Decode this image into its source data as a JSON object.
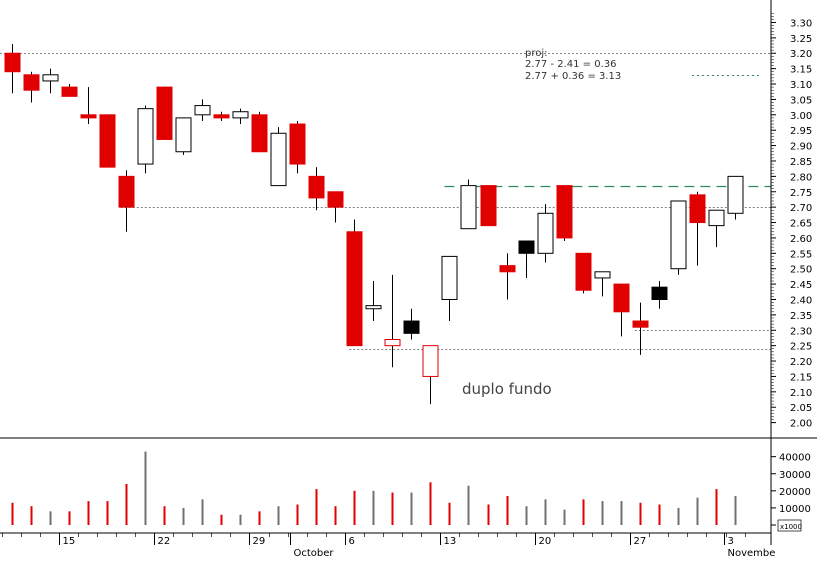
{
  "colors": {
    "background": "#ffffff",
    "up_body": "#ffffff",
    "down_body": "#e00000",
    "neutral_body": "#000000",
    "grid": "#808080",
    "target_line": "#2e8b57",
    "text": "#333333",
    "volume_red": "#e00000",
    "volume_gray": "#707070"
  },
  "chart_data": {
    "type": "candlestick",
    "price_axis": {
      "range": [
        1.95,
        3.36
      ],
      "ticks": [
        "3.30",
        "3.25",
        "3.20",
        "3.15",
        "3.10",
        "3.05",
        "3.00",
        "2.95",
        "2.90",
        "2.85",
        "2.80",
        "2.75",
        "2.70",
        "2.65",
        "2.60",
        "2.55",
        "2.50",
        "2.45",
        "2.40",
        "2.35",
        "2.30",
        "2.25",
        "2.20",
        "2.15",
        "2.10",
        "2.05",
        "2.00"
      ]
    },
    "volume_axis": {
      "range": [
        0,
        48000
      ],
      "ticks": [
        "40000",
        "30000",
        "20000",
        "10000",
        "0"
      ],
      "unit_label": "x1000"
    },
    "x_axis": {
      "ticks": [
        {
          "label": "15",
          "day": 3
        },
        {
          "label": "22",
          "day": 8
        },
        {
          "label": "29",
          "day": 13
        },
        {
          "label": "October",
          "day": 15
        },
        {
          "label": "6",
          "day": 18
        },
        {
          "label": "13",
          "day": 23
        },
        {
          "label": "20",
          "day": 28
        },
        {
          "label": "27",
          "day": 33
        },
        {
          "label": "3",
          "day": 38
        },
        {
          "label": "Novembe",
          "day": 38
        }
      ]
    },
    "candles": [
      {
        "open": 3.2,
        "high": 3.23,
        "low": 3.07,
        "close": 3.14,
        "color": "down"
      },
      {
        "open": 3.13,
        "high": 3.14,
        "low": 3.04,
        "close": 3.08,
        "color": "down"
      },
      {
        "open": 3.11,
        "high": 3.15,
        "low": 3.07,
        "close": 3.13,
        "color": "up"
      },
      {
        "open": 3.09,
        "high": 3.1,
        "low": 3.06,
        "close": 3.06,
        "color": "down"
      },
      {
        "open": 3.0,
        "high": 3.09,
        "low": 2.97,
        "close": 2.99,
        "color": "down"
      },
      {
        "open": 3.0,
        "high": 3.0,
        "low": 2.83,
        "close": 2.83,
        "color": "down"
      },
      {
        "open": 2.8,
        "high": 2.82,
        "low": 2.62,
        "close": 2.7,
        "color": "down"
      },
      {
        "open": 2.84,
        "high": 3.03,
        "low": 2.81,
        "close": 3.02,
        "color": "up"
      },
      {
        "open": 3.09,
        "high": 3.09,
        "low": 2.92,
        "close": 2.92,
        "color": "down"
      },
      {
        "open": 2.88,
        "high": 2.99,
        "low": 2.87,
        "close": 2.99,
        "color": "up"
      },
      {
        "open": 3.0,
        "high": 3.05,
        "low": 2.98,
        "close": 3.03,
        "color": "up"
      },
      {
        "open": 3.0,
        "high": 3.01,
        "low": 2.98,
        "close": 2.99,
        "color": "down"
      },
      {
        "open": 2.99,
        "high": 3.02,
        "low": 2.97,
        "close": 3.01,
        "color": "up"
      },
      {
        "open": 3.0,
        "high": 3.01,
        "low": 2.88,
        "close": 2.88,
        "color": "down"
      },
      {
        "open": 2.77,
        "high": 2.96,
        "low": 2.77,
        "close": 2.94,
        "color": "up"
      },
      {
        "open": 2.97,
        "high": 2.98,
        "low": 2.81,
        "close": 2.84,
        "color": "down"
      },
      {
        "open": 2.8,
        "high": 2.83,
        "low": 2.69,
        "close": 2.73,
        "color": "down"
      },
      {
        "open": 2.75,
        "high": 2.75,
        "low": 2.65,
        "close": 2.7,
        "color": "down"
      },
      {
        "open": 2.62,
        "high": 2.66,
        "low": 2.25,
        "close": 2.25,
        "color": "down"
      },
      {
        "open": 2.37,
        "high": 2.46,
        "low": 2.33,
        "close": 2.38,
        "color": "up"
      },
      {
        "open": 2.27,
        "high": 2.48,
        "low": 2.18,
        "close": 2.25,
        "color": "down_hollow"
      },
      {
        "open": 2.29,
        "high": 2.37,
        "low": 2.27,
        "close": 2.33,
        "color": "neutral"
      },
      {
        "open": 2.25,
        "high": 2.25,
        "low": 2.06,
        "close": 2.15,
        "color": "down_hollow"
      },
      {
        "open": 2.4,
        "high": 2.54,
        "low": 2.33,
        "close": 2.54,
        "color": "up"
      },
      {
        "open": 2.63,
        "high": 2.79,
        "low": 2.63,
        "close": 2.77,
        "color": "up"
      },
      {
        "open": 2.77,
        "high": 2.77,
        "low": 2.64,
        "close": 2.64,
        "color": "down"
      },
      {
        "open": 2.51,
        "high": 2.55,
        "low": 2.4,
        "close": 2.49,
        "color": "down"
      },
      {
        "open": 2.55,
        "high": 2.59,
        "low": 2.47,
        "close": 2.59,
        "color": "neutral"
      },
      {
        "open": 2.55,
        "high": 2.71,
        "low": 2.52,
        "close": 2.68,
        "color": "up"
      },
      {
        "open": 2.77,
        "high": 2.77,
        "low": 2.59,
        "close": 2.6,
        "color": "down"
      },
      {
        "open": 2.55,
        "high": 2.55,
        "low": 2.42,
        "close": 2.43,
        "color": "down"
      },
      {
        "open": 2.47,
        "high": 2.49,
        "low": 2.41,
        "close": 2.49,
        "color": "up"
      },
      {
        "open": 2.45,
        "high": 2.45,
        "low": 2.28,
        "close": 2.36,
        "color": "down"
      },
      {
        "open": 2.33,
        "high": 2.39,
        "low": 2.22,
        "close": 2.31,
        "color": "down"
      },
      {
        "open": 2.4,
        "high": 2.46,
        "low": 2.37,
        "close": 2.44,
        "color": "neutral"
      },
      {
        "open": 2.5,
        "high": 2.72,
        "low": 2.48,
        "close": 2.72,
        "color": "up"
      },
      {
        "open": 2.74,
        "high": 2.75,
        "low": 2.51,
        "close": 2.65,
        "color": "down"
      },
      {
        "open": 2.64,
        "high": 2.69,
        "low": 2.57,
        "close": 2.69,
        "color": "up"
      },
      {
        "open": 2.68,
        "high": 2.8,
        "low": 2.66,
        "close": 2.8,
        "color": "up"
      }
    ],
    "volume": [
      {
        "value": 13000,
        "color": "red"
      },
      {
        "value": 11000,
        "color": "red"
      },
      {
        "value": 8000,
        "color": "gray"
      },
      {
        "value": 8000,
        "color": "red"
      },
      {
        "value": 14000,
        "color": "red"
      },
      {
        "value": 14000,
        "color": "red"
      },
      {
        "value": 24000,
        "color": "red"
      },
      {
        "value": 43000,
        "color": "gray"
      },
      {
        "value": 11000,
        "color": "red"
      },
      {
        "value": 10000,
        "color": "gray"
      },
      {
        "value": 15000,
        "color": "gray"
      },
      {
        "value": 6000,
        "color": "red"
      },
      {
        "value": 6000,
        "color": "gray"
      },
      {
        "value": 8000,
        "color": "red"
      },
      {
        "value": 11000,
        "color": "gray"
      },
      {
        "value": 12000,
        "color": "red"
      },
      {
        "value": 21000,
        "color": "red"
      },
      {
        "value": 11000,
        "color": "red"
      },
      {
        "value": 20000,
        "color": "red"
      },
      {
        "value": 20000,
        "color": "gray"
      },
      {
        "value": 19000,
        "color": "red"
      },
      {
        "value": 19000,
        "color": "gray"
      },
      {
        "value": 25000,
        "color": "red"
      },
      {
        "value": 13000,
        "color": "red"
      },
      {
        "value": 23000,
        "color": "gray"
      },
      {
        "value": 12000,
        "color": "red"
      },
      {
        "value": 17000,
        "color": "red"
      },
      {
        "value": 11000,
        "color": "gray"
      },
      {
        "value": 15000,
        "color": "gray"
      },
      {
        "value": 9000,
        "color": "gray"
      },
      {
        "value": 15000,
        "color": "red"
      },
      {
        "value": 14000,
        "color": "gray"
      },
      {
        "value": 14000,
        "color": "gray"
      },
      {
        "value": 13000,
        "color": "red"
      },
      {
        "value": 12000,
        "color": "red"
      },
      {
        "value": 10000,
        "color": "gray"
      },
      {
        "value": 16000,
        "color": "gray"
      },
      {
        "value": 21000,
        "color": "red"
      },
      {
        "value": 17000,
        "color": "gray"
      }
    ],
    "reference_lines": [
      {
        "name": "dotted-3.20",
        "value": 3.2,
        "style": "dotted",
        "from_day": 0
      },
      {
        "name": "dotted-2.70",
        "value": 2.7,
        "style": "dotted",
        "from_day": 6
      },
      {
        "name": "dashed-2.77-target",
        "value": 2.77,
        "style": "dashed",
        "from_day": 23
      },
      {
        "name": "dotted-2.30",
        "value": 2.3,
        "style": "dotted",
        "from_day": 33
      },
      {
        "name": "dotted-2.24",
        "value": 2.24,
        "style": "dotted",
        "from_day": 18
      },
      {
        "name": "projection-3.13",
        "value": 3.13,
        "style": "dotted-green",
        "from_day": 36
      }
    ],
    "annotations": {
      "proj_title": "proj:",
      "proj_line1": "2.77 - 2.41 = 0.36",
      "proj_line2": "2.77 + 0.36 = 3.13",
      "pattern_label": "duplo fundo"
    }
  }
}
